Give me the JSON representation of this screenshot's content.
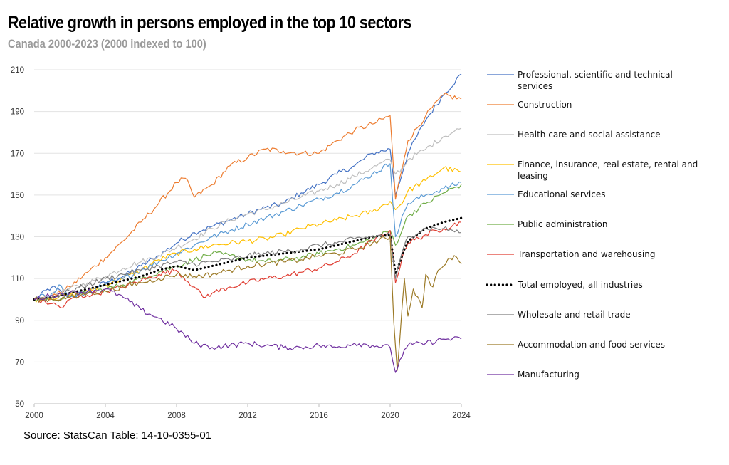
{
  "chart_data": {
    "type": "line",
    "title": "Relative growth in persons employed in the top 10 sectors",
    "subtitle": "Canada 2000-2023 (2000 indexed to 100)",
    "source": "Source: StatsCan Table: 14-10-0355-01",
    "xlabel": "",
    "ylabel": "",
    "xlim": [
      2000,
      2024
    ],
    "ylim": [
      50,
      210
    ],
    "x_ticks": [
      "2000",
      "2004",
      "2008",
      "2012",
      "2016",
      "2020",
      "2024"
    ],
    "y_ticks": [
      "50",
      "70",
      "90",
      "110",
      "130",
      "150",
      "170",
      "190",
      "210"
    ],
    "grid": "horizontal",
    "legend_position": "right",
    "series": [
      {
        "name": "Professional, scientific and technical services",
        "color": "#4472c4",
        "dash": "solid",
        "x": [
          2000,
          2001,
          2002,
          2003,
          2004,
          2005,
          2006,
          2007,
          2008,
          2009,
          2010,
          2011,
          2012,
          2013,
          2014,
          2015,
          2016,
          2017,
          2018,
          2019,
          2020,
          2020.3,
          2020.8,
          2021,
          2022,
          2023,
          2024
        ],
        "values": [
          100,
          106,
          101,
          104,
          108,
          111,
          116,
          121,
          127,
          132,
          135,
          138,
          141,
          144,
          146,
          151,
          155,
          160,
          164,
          170,
          172,
          150,
          164,
          170,
          186,
          198,
          208
        ]
      },
      {
        "name": "Construction",
        "color": "#ed7d31",
        "dash": "solid",
        "x": [
          2000,
          2001,
          2002,
          2003,
          2004,
          2005,
          2006,
          2007,
          2008,
          2008.5,
          2009,
          2010,
          2011,
          2012,
          2013,
          2014,
          2015,
          2016,
          2017,
          2018,
          2019,
          2020,
          2020.3,
          2020.8,
          2021,
          2022,
          2023,
          2024
        ],
        "values": [
          100,
          101,
          106,
          113,
          120,
          128,
          137,
          146,
          156,
          158,
          149,
          155,
          164,
          168,
          172,
          171,
          170,
          170,
          176,
          181,
          184,
          188,
          148,
          168,
          176,
          188,
          198,
          196
        ]
      },
      {
        "name": "Health care and social assistance",
        "color": "#bfbfbf",
        "dash": "solid",
        "x": [
          2000,
          2001,
          2002,
          2003,
          2004,
          2005,
          2006,
          2007,
          2008,
          2009,
          2010,
          2011,
          2012,
          2013,
          2014,
          2015,
          2016,
          2017,
          2018,
          2019,
          2020,
          2020.3,
          2020.8,
          2021,
          2022,
          2023,
          2024
        ],
        "values": [
          100,
          102,
          105,
          108,
          111,
          115,
          118,
          121,
          125,
          129,
          134,
          138,
          141,
          143,
          146,
          149,
          152,
          155,
          159,
          163,
          167,
          160,
          164,
          167,
          172,
          178,
          182
        ]
      },
      {
        "name": "Finance, insurance, real estate, rental and leasing",
        "color": "#ffc000",
        "dash": "solid",
        "x": [
          2000,
          2001,
          2002,
          2003,
          2004,
          2005,
          2006,
          2007,
          2008,
          2009,
          2010,
          2011,
          2012,
          2013,
          2014,
          2015,
          2016,
          2017,
          2018,
          2019,
          2020,
          2020.3,
          2020.8,
          2021,
          2022,
          2023,
          2024
        ],
        "values": [
          100,
          101,
          102,
          104,
          107,
          110,
          114,
          119,
          122,
          124,
          126,
          127,
          128,
          129,
          131,
          134,
          136,
          138,
          140,
          142,
          147,
          143,
          148,
          152,
          157,
          163,
          161
        ]
      },
      {
        "name": "Educational services",
        "color": "#5b9bd5",
        "dash": "solid",
        "x": [
          2000,
          2001,
          2001.4,
          2002,
          2003,
          2004,
          2005,
          2006,
          2007,
          2008,
          2009,
          2010,
          2011,
          2012,
          2013,
          2014,
          2015,
          2016,
          2017,
          2018,
          2019,
          2020,
          2020.3,
          2020.8,
          2021,
          2022,
          2023,
          2024
        ],
        "values": [
          100,
          103,
          107,
          101,
          103,
          107,
          110,
          114,
          118,
          122,
          126,
          130,
          133,
          136,
          139,
          142,
          145,
          148,
          151,
          155,
          160,
          165,
          130,
          142,
          146,
          150,
          153,
          156
        ]
      },
      {
        "name": "Public administration",
        "color": "#70ad47",
        "dash": "solid",
        "x": [
          2000,
          2001,
          2002,
          2003,
          2004,
          2005,
          2006,
          2007,
          2008,
          2009,
          2010,
          2011,
          2012,
          2013,
          2014,
          2015,
          2016,
          2017,
          2018,
          2019,
          2020,
          2020.3,
          2020.8,
          2021,
          2022,
          2023,
          2024
        ],
        "values": [
          100,
          100,
          101,
          103,
          105,
          107,
          110,
          113,
          116,
          119,
          122,
          121,
          119,
          118,
          119,
          120,
          122,
          124,
          126,
          129,
          133,
          126,
          136,
          140,
          146,
          151,
          155
        ]
      },
      {
        "name": "Transportation and warehousing",
        "color": "#e03c31",
        "dash": "solid",
        "x": [
          2000,
          2001,
          2001.6,
          2002,
          2003,
          2004,
          2005,
          2006,
          2007,
          2008,
          2009,
          2009.5,
          2010,
          2011,
          2012,
          2013,
          2014,
          2015,
          2016,
          2017,
          2018,
          2019,
          2020,
          2020.3,
          2020.8,
          2021,
          2022,
          2023,
          2024
        ],
        "values": [
          100,
          98,
          96,
          100,
          102,
          104,
          106,
          109,
          112,
          114,
          106,
          101,
          103,
          106,
          108,
          110,
          111,
          113,
          115,
          118,
          122,
          128,
          133,
          108,
          124,
          127,
          131,
          134,
          137
        ]
      },
      {
        "name": "Total employed, all industries",
        "color": "#000000",
        "dash": "dotted",
        "x": [
          2000,
          2001,
          2002,
          2003,
          2004,
          2005,
          2006,
          2007,
          2008,
          2009,
          2010,
          2011,
          2012,
          2013,
          2014,
          2015,
          2016,
          2017,
          2018,
          2019,
          2020,
          2020.3,
          2020.8,
          2021,
          2022,
          2023,
          2024
        ],
        "values": [
          100,
          101,
          103,
          105,
          107,
          109,
          111,
          114,
          116,
          114,
          116,
          118,
          120,
          121,
          122,
          123,
          124,
          126,
          128,
          130,
          131,
          112,
          124,
          128,
          134,
          137,
          139
        ]
      },
      {
        "name": "Wholesale and retail trade",
        "color": "#7f7f7f",
        "dash": "solid",
        "x": [
          2000,
          2001,
          2002,
          2003,
          2004,
          2005,
          2006,
          2007,
          2008,
          2009,
          2010,
          2011,
          2012,
          2013,
          2014,
          2015,
          2016,
          2017,
          2018,
          2019,
          2020,
          2020.3,
          2020.8,
          2021,
          2022,
          2023,
          2024
        ],
        "values": [
          100,
          101,
          104,
          107,
          110,
          112,
          114,
          116,
          118,
          117,
          118,
          119,
          121,
          122,
          123,
          124,
          126,
          127,
          129,
          130,
          131,
          110,
          126,
          130,
          134,
          134,
          132
        ]
      },
      {
        "name": "Accommodation and food services",
        "color": "#9c7a27",
        "dash": "solid",
        "x": [
          2000,
          2001,
          2002,
          2003,
          2004,
          2005,
          2006,
          2007,
          2008,
          2009,
          2010,
          2011,
          2012,
          2013,
          2014,
          2015,
          2016,
          2017,
          2018,
          2019,
          2020,
          2020.2,
          2020.4,
          2020.8,
          2021,
          2021.3,
          2021.8,
          2022,
          2022.4,
          2022.7,
          2023,
          2023.6,
          2024
        ],
        "values": [
          100,
          100,
          101,
          103,
          104,
          106,
          108,
          110,
          112,
          111,
          112,
          114,
          116,
          117,
          118,
          119,
          121,
          122,
          124,
          127,
          130,
          90,
          66,
          110,
          92,
          105,
          96,
          112,
          106,
          114,
          116,
          121,
          117
        ]
      },
      {
        "name": "Manufacturing",
        "color": "#7030a0",
        "dash": "solid",
        "x": [
          2000,
          2001,
          2002,
          2003,
          2004,
          2005,
          2006,
          2007,
          2008,
          2009,
          2010,
          2011,
          2012,
          2013,
          2014,
          2015,
          2016,
          2017,
          2018,
          2019,
          2020,
          2020.3,
          2020.8,
          2021,
          2022,
          2023,
          2024
        ],
        "values": [
          100,
          102,
          103,
          104,
          105,
          101,
          95,
          91,
          86,
          79,
          77,
          78,
          79,
          78,
          77,
          77,
          78,
          77,
          79,
          78,
          77,
          65,
          76,
          78,
          79,
          81,
          81
        ]
      }
    ]
  }
}
